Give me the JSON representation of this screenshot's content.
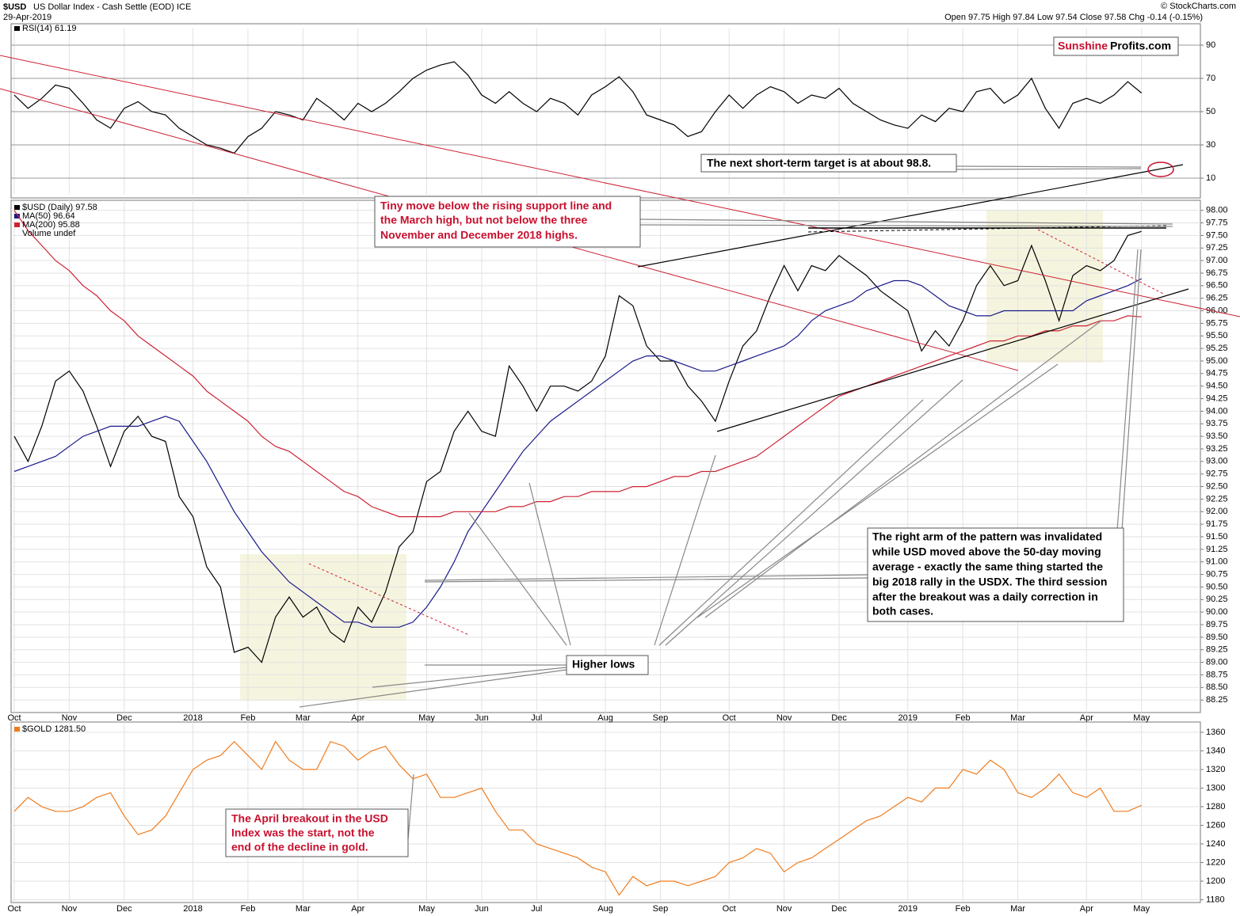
{
  "header": {
    "symbol": "$USD",
    "name": "US Dollar Index - Cash Settle (EOD) ICE",
    "date": "29-Apr-2019",
    "quote": "Open 97.75  High 97.84  Low 97.54  Close 97.58  Chg -0.14 (-0.15%)",
    "credit": "© StockCharts.com"
  },
  "watermark": {
    "part1": "Sunshine",
    "part2": "Profits.com"
  },
  "annotations": {
    "target": "The next short-term target is at about 98.8.",
    "tiny_move": [
      "Tiny move below the rising support line and",
      "the March high, but not below the three",
      "November and December 2018 highs."
    ],
    "right_arm": [
      "The right arm of the pattern was invalidated",
      "while USD moved above the 50-day moving",
      "average - exactly the same thing started the",
      "big 2018 rally in the USDX. The third session",
      "after the breakout was a daily correction in",
      "both cases."
    ],
    "higher_lows": "Higher lows",
    "gold_note": [
      "The April breakout in the USD",
      "Index was the start, not the",
      "end of the decline in gold."
    ]
  },
  "chart_data": [
    {
      "type": "line",
      "ylim": [
        0,
        100
      ],
      "yticks": [
        10,
        30,
        50,
        70,
        90
      ],
      "grid": true,
      "series": [
        {
          "name": "RSI(14) 61.19",
          "color": "#000000",
          "values": [
            60,
            52,
            58,
            66,
            64,
            55,
            45,
            40,
            52,
            56,
            50,
            48,
            40,
            35,
            30,
            28,
            25,
            35,
            40,
            50,
            48,
            45,
            58,
            52,
            45,
            55,
            50,
            55,
            62,
            70,
            75,
            78,
            80,
            72,
            60,
            55,
            62,
            55,
            50,
            58,
            55,
            48,
            60,
            65,
            71,
            62,
            48,
            45,
            42,
            35,
            38,
            50,
            60,
            52,
            60,
            65,
            62,
            55,
            60,
            58,
            64,
            55,
            50,
            45,
            42,
            40,
            48,
            44,
            52,
            50,
            62,
            64,
            55,
            60,
            70,
            52,
            40,
            55,
            58,
            55,
            60,
            68,
            61.19,
            null,
            null,
            null,
            null
          ]
        }
      ]
    },
    {
      "type": "line",
      "ylim": [
        88,
        98.2
      ],
      "grid": true,
      "volume_label": "Volume undef",
      "yticks": [
        88.25,
        {
          "value": 88.5,
          "label": "88.50"
        },
        88.75,
        {
          "value": 89,
          "label": "89.00"
        },
        89.25,
        {
          "value": 89.5,
          "label": "89.50"
        },
        89.75,
        {
          "value": 90,
          "label": "90.00"
        },
        90.25,
        {
          "value": 90.5,
          "label": "90.50"
        },
        90.75,
        {
          "value": 91,
          "label": "91.00"
        },
        91.25,
        {
          "value": 91.5,
          "label": "91.50"
        },
        91.75,
        {
          "value": 92,
          "label": "92.00"
        },
        92.25,
        {
          "value": 92.5,
          "label": "92.50"
        },
        92.75,
        {
          "value": 93,
          "label": "93.00"
        },
        93.25,
        {
          "value": 93.5,
          "label": "93.50"
        },
        93.75,
        {
          "value": 94,
          "label": "94.00"
        },
        94.25,
        {
          "value": 94.5,
          "label": "94.50"
        },
        94.75,
        {
          "value": 95,
          "label": "95.00"
        },
        95.25,
        {
          "value": 95.5,
          "label": "95.50"
        },
        95.75,
        {
          "value": 96,
          "label": "96.00"
        },
        96.25,
        {
          "value": 96.5,
          "label": "96.50"
        },
        96.75,
        {
          "value": 97,
          "label": "97.00"
        },
        97.25,
        {
          "value": 97.5,
          "label": "97.50"
        },
        97.75,
        {
          "value": 98,
          "label": "98.00"
        }
      ],
      "categories": [
        "Oct",
        null,
        null,
        null,
        "Nov",
        null,
        null,
        null,
        "Dec",
        null,
        null,
        null,
        null,
        "2018",
        null,
        null,
        null,
        "Feb",
        null,
        null,
        null,
        "Mar",
        null,
        null,
        null,
        "Apr",
        null,
        null,
        null,
        null,
        "May",
        null,
        null,
        null,
        "Jun",
        null,
        null,
        null,
        "Jul",
        null,
        null,
        null,
        null,
        "Aug",
        null,
        null,
        null,
        "Sep",
        null,
        null,
        null,
        null,
        "Oct",
        null,
        null,
        null,
        "Nov",
        null,
        null,
        null,
        "Dec",
        null,
        null,
        null,
        null,
        "2019",
        null,
        null,
        null,
        "Feb",
        null,
        null,
        null,
        "Mar",
        null,
        null,
        null,
        null,
        "Apr",
        null,
        null,
        null,
        "May",
        null,
        null,
        null,
        null
      ],
      "series": [
        {
          "name": "$USD (Daily) 97.58",
          "color": "#000000",
          "values": [
            93.5,
            93.0,
            93.7,
            94.6,
            94.8,
            94.4,
            93.7,
            92.9,
            93.6,
            93.9,
            93.5,
            93.4,
            92.3,
            91.9,
            90.9,
            90.5,
            89.2,
            89.3,
            89.0,
            89.9,
            90.3,
            89.9,
            90.1,
            89.6,
            89.4,
            90.1,
            89.8,
            90.4,
            91.3,
            91.6,
            92.6,
            92.8,
            93.6,
            94.0,
            93.6,
            93.5,
            94.9,
            94.5,
            94.0,
            94.5,
            94.5,
            94.4,
            94.6,
            95.1,
            96.3,
            96.1,
            95.3,
            95.0,
            95.0,
            94.5,
            94.2,
            93.8,
            94.6,
            95.3,
            95.6,
            96.3,
            96.9,
            96.4,
            96.9,
            96.8,
            97.1,
            96.9,
            96.7,
            96.4,
            96.2,
            96.0,
            95.2,
            95.6,
            95.3,
            95.8,
            96.5,
            96.9,
            96.5,
            96.6,
            97.3,
            96.6,
            95.8,
            96.7,
            96.9,
            96.8,
            97.0,
            97.5,
            97.58,
            null,
            null,
            null,
            null
          ]
        },
        {
          "name": "MA(50) 96.64",
          "color": "#1a1a8c",
          "values": [
            92.8,
            92.9,
            93.0,
            93.1,
            93.3,
            93.5,
            93.6,
            93.7,
            93.7,
            93.7,
            93.8,
            93.9,
            93.8,
            93.4,
            93.0,
            92.5,
            92.0,
            91.6,
            91.2,
            90.9,
            90.6,
            90.4,
            90.2,
            90.0,
            89.8,
            89.8,
            89.7,
            89.7,
            89.7,
            89.8,
            90.1,
            90.5,
            91.0,
            91.6,
            92.0,
            92.4,
            92.8,
            93.2,
            93.5,
            93.8,
            94.0,
            94.2,
            94.4,
            94.6,
            94.8,
            95.0,
            95.1,
            95.1,
            95.0,
            94.9,
            94.8,
            94.8,
            94.9,
            95.0,
            95.1,
            95.2,
            95.3,
            95.5,
            95.8,
            96.0,
            96.1,
            96.2,
            96.4,
            96.5,
            96.6,
            96.6,
            96.5,
            96.3,
            96.1,
            96.0,
            95.9,
            95.9,
            96.0,
            96.0,
            96.0,
            96.0,
            96.0,
            96.0,
            96.2,
            96.3,
            96.4,
            96.5,
            96.64,
            null,
            null,
            null,
            null
          ]
        },
        {
          "name": "MA(200) 95.88",
          "color": "#cc2233",
          "values": [
            98.0,
            97.6,
            97.3,
            97.0,
            96.8,
            96.5,
            96.3,
            96.0,
            95.8,
            95.5,
            95.3,
            95.1,
            94.9,
            94.7,
            94.4,
            94.2,
            94.0,
            93.8,
            93.5,
            93.3,
            93.2,
            93.0,
            92.8,
            92.6,
            92.4,
            92.3,
            92.1,
            92.0,
            91.9,
            91.9,
            91.9,
            91.9,
            92.0,
            92.0,
            92.0,
            92.0,
            92.1,
            92.1,
            92.2,
            92.2,
            92.3,
            92.3,
            92.4,
            92.4,
            92.4,
            92.5,
            92.5,
            92.6,
            92.7,
            92.7,
            92.8,
            92.8,
            92.9,
            93.0,
            93.1,
            93.3,
            93.5,
            93.7,
            93.9,
            94.1,
            94.3,
            94.4,
            94.5,
            94.6,
            94.7,
            94.8,
            94.9,
            95.0,
            95.1,
            95.2,
            95.3,
            95.4,
            95.4,
            95.5,
            95.5,
            95.6,
            95.6,
            95.7,
            95.7,
            95.8,
            95.8,
            95.9,
            95.88,
            null,
            null,
            null,
            null
          ]
        }
      ]
    },
    {
      "type": "line",
      "ylim": [
        1177,
        1371
      ],
      "yticks": [
        1180,
        1200,
        1220,
        1240,
        1260,
        1280,
        1300,
        1320,
        1340,
        1360
      ],
      "grid": true,
      "categories": [
        "Oct",
        null,
        null,
        null,
        "Nov",
        null,
        null,
        null,
        "Dec",
        null,
        null,
        null,
        null,
        "2018",
        null,
        null,
        null,
        "Feb",
        null,
        null,
        null,
        "Mar",
        null,
        null,
        null,
        "Apr",
        null,
        null,
        null,
        null,
        "May",
        null,
        null,
        null,
        "Jun",
        null,
        null,
        null,
        "Jul",
        null,
        null,
        null,
        null,
        "Aug",
        null,
        null,
        null,
        "Sep",
        null,
        null,
        null,
        null,
        "Oct",
        null,
        null,
        null,
        "Nov",
        null,
        null,
        null,
        "Dec",
        null,
        null,
        null,
        null,
        "2019",
        null,
        null,
        null,
        "Feb",
        null,
        null,
        null,
        "Mar",
        null,
        null,
        null,
        null,
        "Apr",
        null,
        null,
        null,
        "May",
        null,
        null,
        null,
        null
      ],
      "series": [
        {
          "name": "$GOLD 1281.50",
          "color": "#f07c1e",
          "values": [
            1275,
            1290,
            1280,
            1275,
            1275,
            1280,
            1290,
            1295,
            1270,
            1250,
            1255,
            1270,
            1295,
            1320,
            1330,
            1335,
            1350,
            1335,
            1320,
            1350,
            1330,
            1320,
            1320,
            1350,
            1345,
            1330,
            1340,
            1345,
            1325,
            1310,
            1315,
            1290,
            1290,
            1295,
            1300,
            1275,
            1255,
            1255,
            1240,
            1235,
            1230,
            1225,
            1215,
            1210,
            1185,
            1205,
            1195,
            1200,
            1200,
            1195,
            1200,
            1205,
            1220,
            1225,
            1235,
            1230,
            1210,
            1220,
            1225,
            1235,
            1245,
            1255,
            1265,
            1270,
            1280,
            1290,
            1285,
            1300,
            1300,
            1320,
            1315,
            1330,
            1320,
            1295,
            1290,
            1300,
            1315,
            1295,
            1290,
            1300,
            1275,
            1275,
            1281.5,
            null,
            null,
            null,
            null
          ]
        }
      ]
    }
  ]
}
